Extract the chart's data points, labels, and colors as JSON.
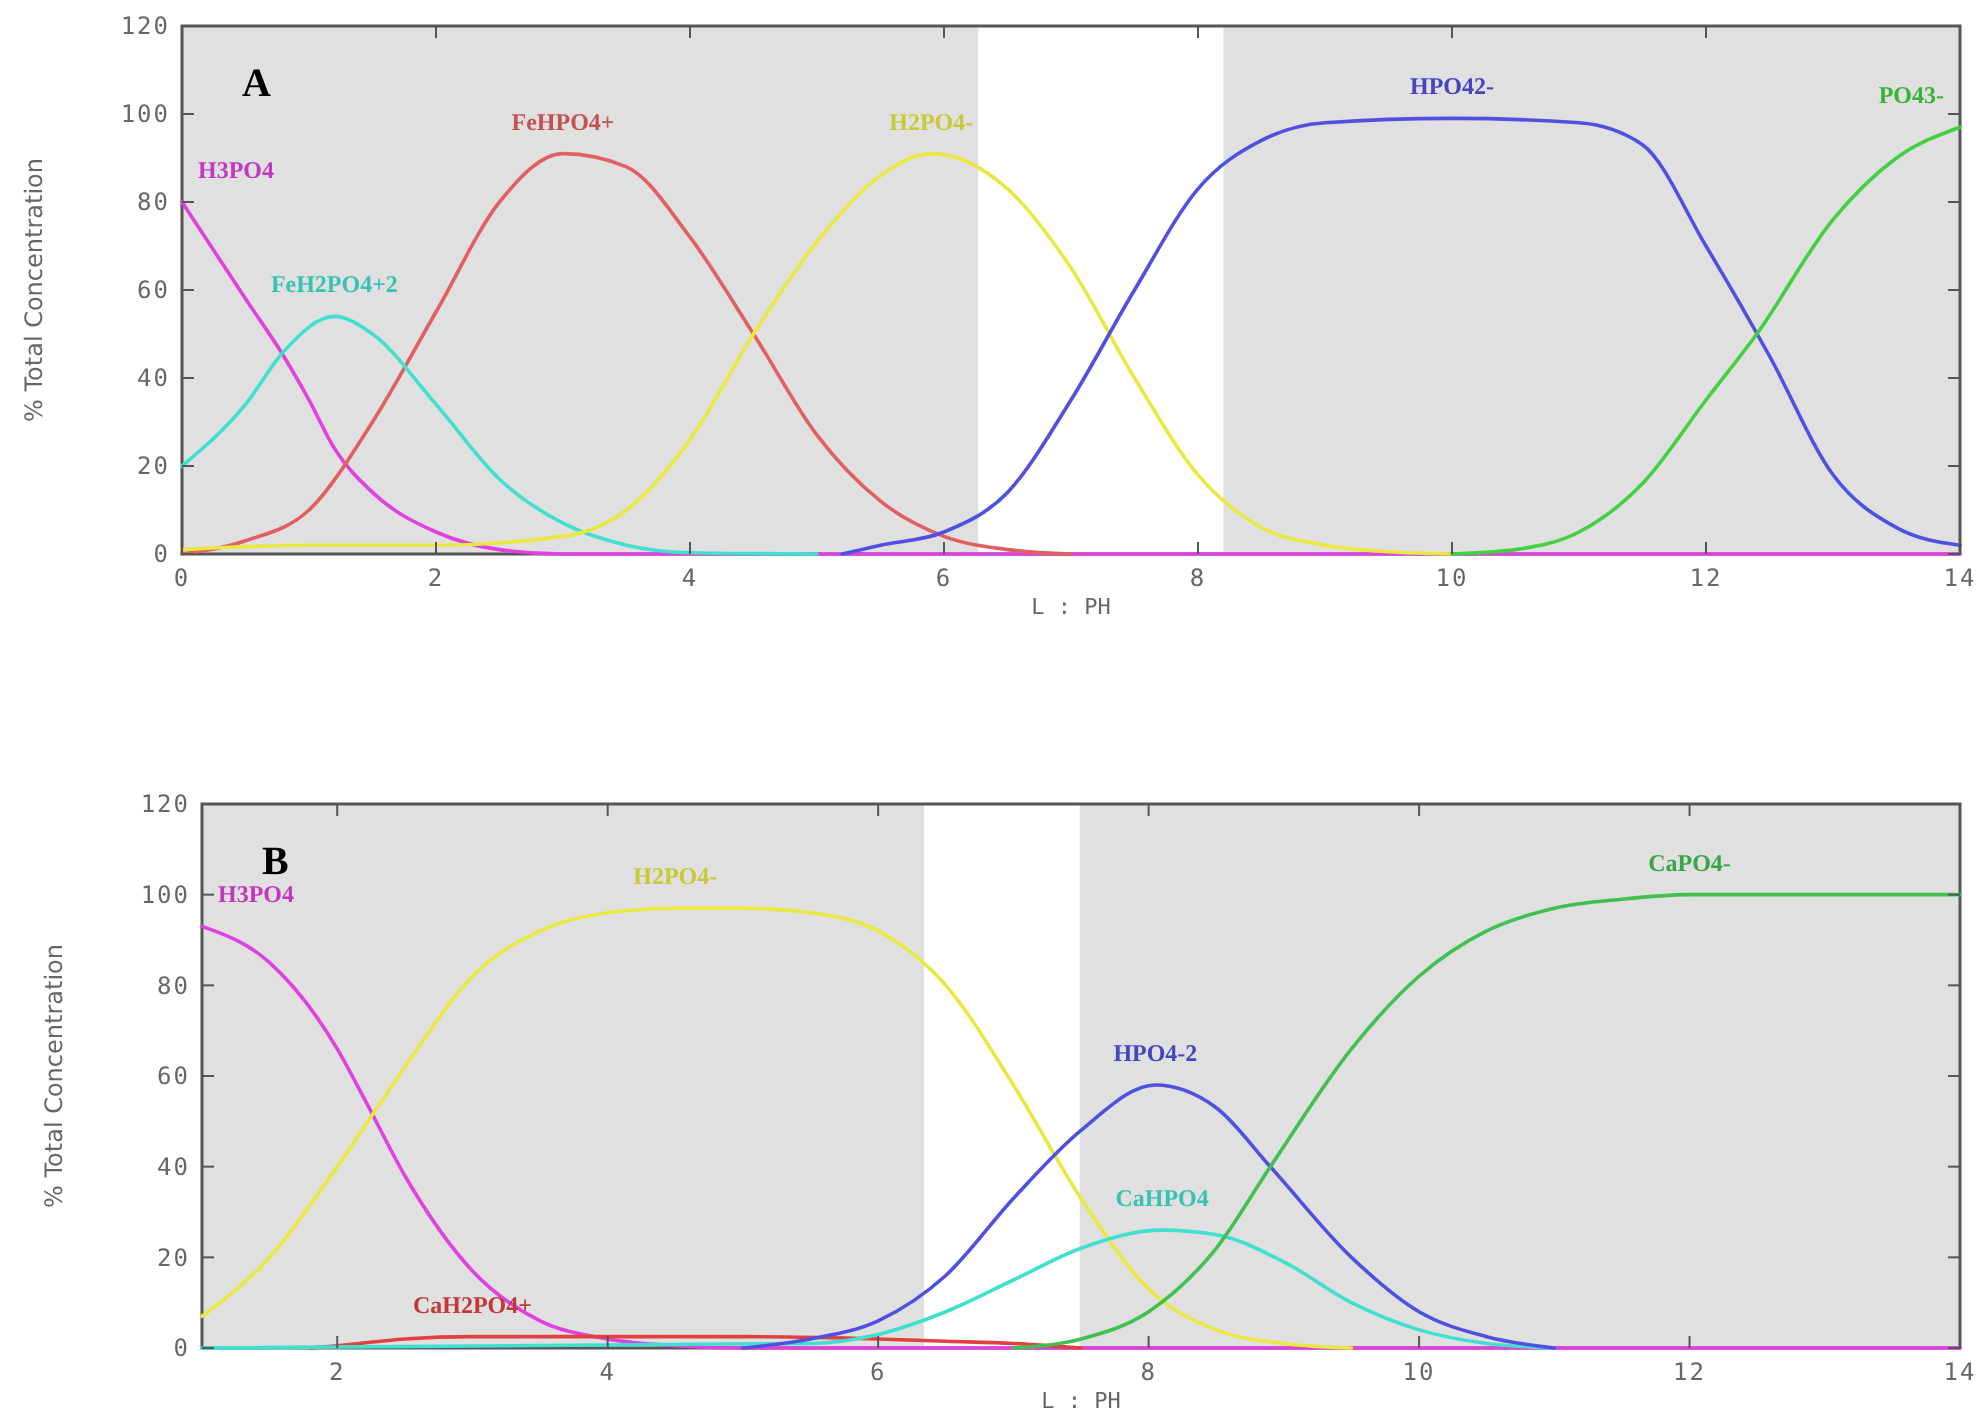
{
  "chart_data": [
    {
      "type": "line",
      "title": "A",
      "xlabel": "L : PH",
      "ylabel": "% Total Concentration",
      "xlim": [
        0,
        14
      ],
      "ylim": [
        0,
        120
      ],
      "xticks": [
        0,
        2,
        4,
        6,
        8,
        10,
        12,
        14
      ],
      "yticks": [
        0,
        20,
        40,
        60,
        80,
        100,
        120
      ],
      "grid": false,
      "marker": "none",
      "line_style": "solid",
      "bands": [
        {
          "axis": "x",
          "from": 0,
          "to": 6.27,
          "color": "#e0e0e0"
        },
        {
          "axis": "x",
          "from": 8.2,
          "to": 14,
          "color": "#e0e0e0"
        }
      ],
      "series": [
        {
          "name": "H3PO4",
          "color": "#e040e0",
          "x": [
            0,
            0.5,
            0.8,
            1,
            1.2,
            1.5,
            2,
            2.5,
            3,
            14
          ],
          "values": [
            80,
            58,
            45,
            35,
            24,
            14,
            5,
            1,
            0,
            0
          ]
        },
        {
          "name": "FeHPO4+",
          "color": "#e06060",
          "x": [
            0,
            0.5,
            1,
            1.5,
            2,
            2.5,
            3,
            3.5,
            4,
            4.5,
            5,
            5.5,
            6,
            6.5,
            7
          ],
          "values": [
            0,
            3,
            10,
            30,
            55,
            80,
            91,
            88,
            72,
            50,
            27,
            12,
            4,
            1,
            0
          ]
        },
        {
          "name": "FeH2PO4+2",
          "color": "#40e0d0",
          "x": [
            0,
            0.5,
            0.8,
            1.2,
            1.5,
            2,
            2.5,
            3,
            3.5,
            4,
            5
          ],
          "values": [
            20,
            34,
            46,
            54,
            50,
            34,
            17,
            7,
            2,
            0.3,
            0
          ]
        },
        {
          "name": "H2PO4-",
          "color": "#e8e840",
          "x": [
            0,
            1,
            2,
            3,
            3.5,
            4,
            4.5,
            5,
            5.5,
            5.9,
            6.5,
            7,
            7.5,
            8,
            8.5,
            9,
            9.5,
            10
          ],
          "values": [
            1,
            2,
            2,
            4,
            10,
            26,
            50,
            71,
            86,
            91,
            83,
            65,
            40,
            18,
            6,
            2,
            0.5,
            0
          ]
        },
        {
          "name": "HPO42-",
          "color": "#5050e0",
          "x": [
            5.2,
            5.5,
            6,
            6.5,
            7,
            7.5,
            8,
            8.5,
            9,
            10,
            11,
            11.5,
            12,
            12.5,
            13,
            13.5,
            14
          ],
          "values": [
            0,
            2,
            5,
            14,
            35,
            60,
            83,
            94,
            98,
            99,
            98,
            93,
            70,
            45,
            18,
            6,
            2
          ]
        },
        {
          "name": "PO43-",
          "color": "#40d040",
          "x": [
            10,
            10.5,
            11,
            11.5,
            12,
            12.4,
            13,
            13.5,
            14
          ],
          "values": [
            0,
            1,
            5,
            16,
            35,
            50,
            76,
            90,
            97
          ]
        }
      ]
    },
    {
      "type": "line",
      "title": "B",
      "xlabel": "L : PH",
      "ylabel": "% Total Concentration",
      "xlim": [
        1,
        14
      ],
      "ylim": [
        0,
        120
      ],
      "xticks": [
        2,
        4,
        6,
        8,
        10,
        12,
        14
      ],
      "yticks": [
        0,
        20,
        40,
        60,
        80,
        100,
        120
      ],
      "grid": false,
      "marker": "none",
      "line_style": "solid",
      "bands": [
        {
          "axis": "x",
          "from": 1,
          "to": 6.34,
          "color": "#e0e0e0"
        },
        {
          "axis": "x",
          "from": 7.49,
          "to": 14,
          "color": "#e0e0e0"
        }
      ],
      "series": [
        {
          "name": "H3PO4",
          "color": "#e040e0",
          "x": [
            1,
            1.5,
            2,
            2.2,
            2.5,
            3,
            3.5,
            4,
            4.5,
            5,
            14
          ],
          "values": [
            93,
            85,
            66,
            55,
            38,
            17,
            6,
            2,
            0.5,
            0,
            0
          ]
        },
        {
          "name": "H2PO4-",
          "color": "#e8e840",
          "x": [
            1,
            1.5,
            2,
            2.5,
            3,
            3.5,
            4,
            4.5,
            5,
            5.5,
            6,
            6.5,
            7,
            7.5,
            8,
            8.5,
            9,
            9.5
          ],
          "values": [
            7,
            20,
            40,
            62,
            82,
            92,
            96,
            97,
            97,
            96,
            92,
            80,
            58,
            33,
            13,
            4,
            1,
            0
          ]
        },
        {
          "name": "CaH2PO4+",
          "color": "#e04040",
          "x": [
            1.8,
            2,
            2.5,
            3,
            4,
            5,
            6,
            6.5,
            7,
            7.5
          ],
          "values": [
            0,
            0.5,
            2,
            2.5,
            2.5,
            2.5,
            2,
            1.5,
            1,
            0
          ]
        },
        {
          "name": "CaHPO4",
          "color": "#40e0d0",
          "x": [
            1,
            5.5,
            6,
            6.5,
            7,
            7.5,
            8.1,
            8.5,
            9,
            9.5,
            10,
            10.5,
            11
          ],
          "values": [
            0,
            1,
            3,
            8,
            15,
            22,
            26,
            25,
            19,
            10,
            4,
            1,
            0
          ]
        },
        {
          "name": "HPO4-2",
          "color": "#5050e0",
          "x": [
            5,
            5.5,
            6,
            6.5,
            7,
            7.5,
            8.05,
            8.5,
            8.9,
            9.5,
            10,
            10.5,
            11
          ],
          "values": [
            0,
            2,
            6,
            16,
            33,
            48,
            58,
            53,
            40,
            20,
            8,
            2.5,
            0
          ]
        },
        {
          "name": "CaPO4-",
          "color": "#40c050",
          "x": [
            7,
            7.5,
            8,
            8.5,
            8.9,
            9.5,
            10,
            10.5,
            11,
            11.5,
            12,
            14
          ],
          "values": [
            0,
            2,
            8,
            22,
            40,
            66,
            82,
            92,
            97,
            99,
            100,
            100
          ]
        }
      ]
    }
  ]
}
